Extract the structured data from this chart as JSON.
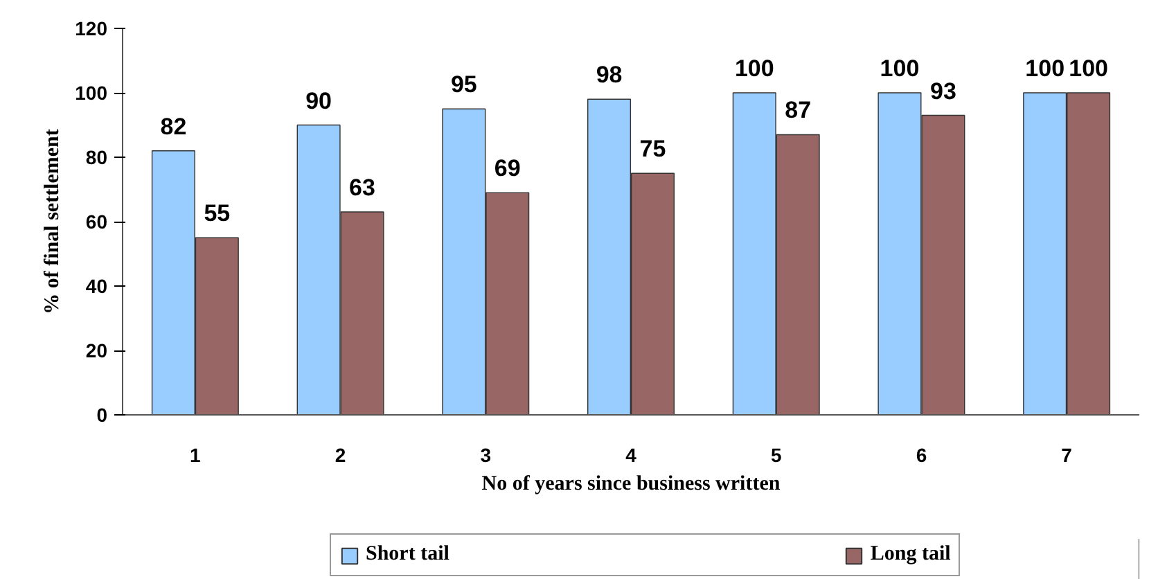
{
  "chart_data": {
    "type": "bar",
    "xlabel": "No of years since business written",
    "ylabel": "% of final settlement",
    "categories": [
      "1",
      "2",
      "3",
      "4",
      "5",
      "6",
      "7"
    ],
    "series": [
      {
        "name": "Short tail",
        "color": "#99ccff",
        "values": [
          82,
          90,
          95,
          98,
          100,
          100,
          100
        ]
      },
      {
        "name": "Long tail",
        "color": "#996666",
        "values": [
          55,
          63,
          69,
          75,
          87,
          93,
          100
        ]
      }
    ],
    "ylim": [
      0,
      120
    ],
    "yticks": [
      0,
      20,
      40,
      60,
      80,
      100,
      120
    ],
    "grid": false,
    "legend": "bottom",
    "data_labels": true
  }
}
